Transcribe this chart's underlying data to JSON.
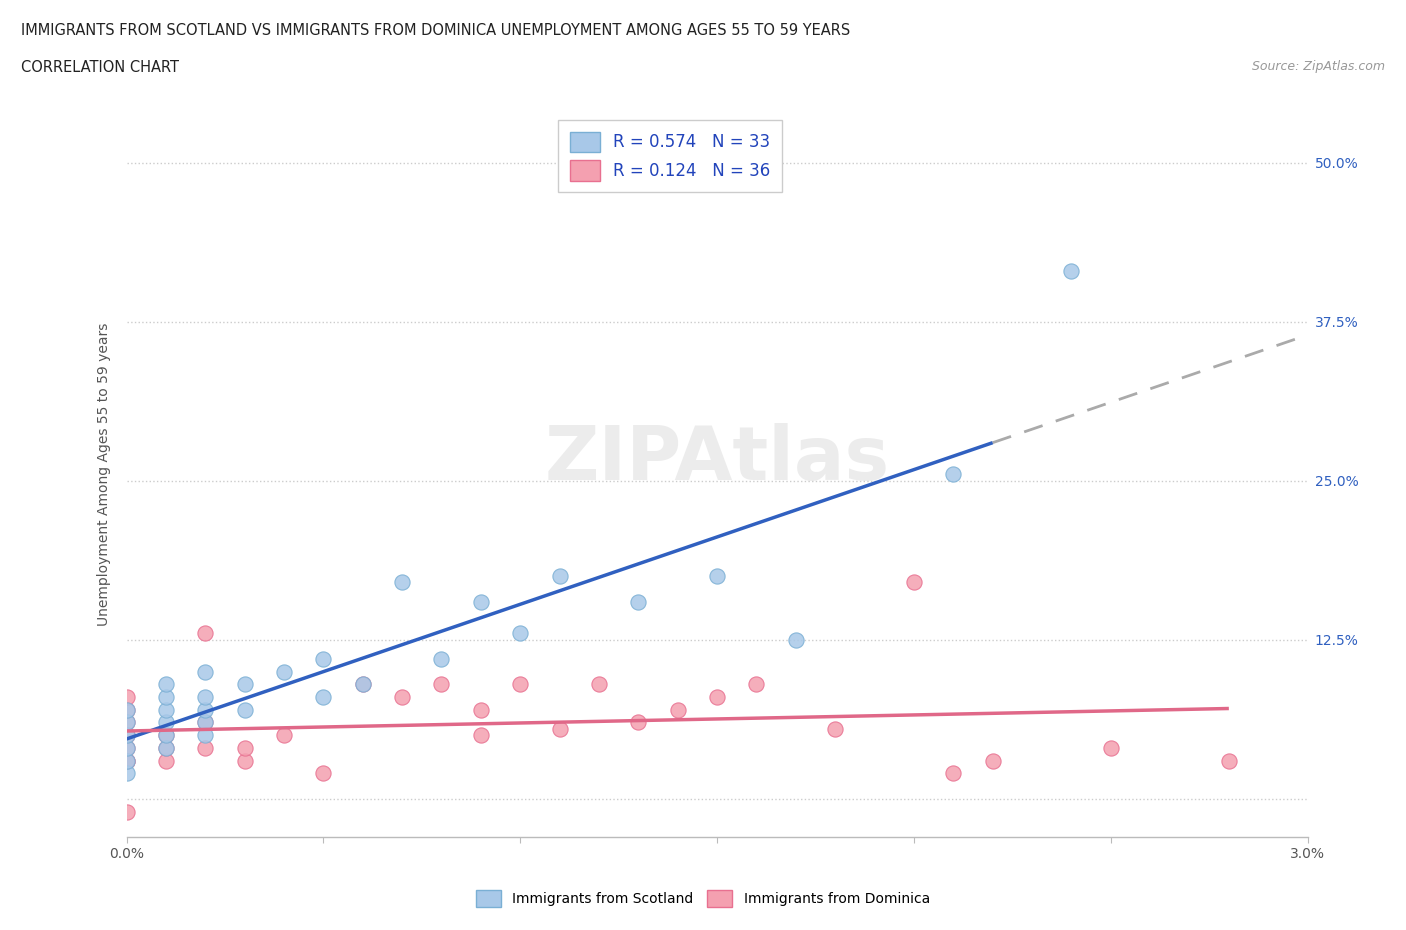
{
  "title_line1": "IMMIGRANTS FROM SCOTLAND VS IMMIGRANTS FROM DOMINICA UNEMPLOYMENT AMONG AGES 55 TO 59 YEARS",
  "title_line2": "CORRELATION CHART",
  "source": "Source: ZipAtlas.com",
  "ylabel": "Unemployment Among Ages 55 to 59 years",
  "xlim": [
    0.0,
    0.03
  ],
  "ylim": [
    -0.03,
    0.54
  ],
  "xticks": [
    0.0,
    0.005,
    0.01,
    0.015,
    0.02,
    0.025,
    0.03
  ],
  "xticklabels": [
    "0.0%",
    "",
    "",
    "",
    "",
    "",
    "3.0%"
  ],
  "ytick_positions": [
    0.0,
    0.125,
    0.25,
    0.375,
    0.5
  ],
  "right_yticklabels": [
    "",
    "12.5%",
    "25.0%",
    "37.5%",
    "50.0%"
  ],
  "scotland_color": "#a8c8e8",
  "dominica_color": "#f4a0b0",
  "scotland_edge": "#7aafd4",
  "dominica_edge": "#e87090",
  "scotland_R": 0.574,
  "scotland_N": 33,
  "dominica_R": 0.124,
  "dominica_N": 36,
  "scotland_x": [
    0.0,
    0.0,
    0.0,
    0.0,
    0.0,
    0.0,
    0.001,
    0.001,
    0.001,
    0.001,
    0.001,
    0.001,
    0.002,
    0.002,
    0.002,
    0.002,
    0.002,
    0.003,
    0.003,
    0.004,
    0.005,
    0.005,
    0.006,
    0.007,
    0.008,
    0.009,
    0.01,
    0.011,
    0.013,
    0.015,
    0.017,
    0.021,
    0.024
  ],
  "scotland_y": [
    0.02,
    0.03,
    0.04,
    0.05,
    0.06,
    0.07,
    0.04,
    0.05,
    0.06,
    0.07,
    0.08,
    0.09,
    0.05,
    0.06,
    0.07,
    0.08,
    0.1,
    0.07,
    0.09,
    0.1,
    0.08,
    0.11,
    0.09,
    0.17,
    0.11,
    0.155,
    0.13,
    0.175,
    0.155,
    0.175,
    0.125,
    0.255,
    0.415
  ],
  "dominica_x": [
    0.0,
    0.0,
    0.0,
    0.0,
    0.0,
    0.0,
    0.0,
    0.0,
    0.001,
    0.001,
    0.001,
    0.002,
    0.002,
    0.002,
    0.003,
    0.003,
    0.004,
    0.005,
    0.006,
    0.007,
    0.008,
    0.009,
    0.009,
    0.01,
    0.011,
    0.012,
    0.013,
    0.014,
    0.015,
    0.016,
    0.018,
    0.02,
    0.021,
    0.022,
    0.025,
    0.028
  ],
  "dominica_y": [
    0.03,
    0.04,
    0.05,
    0.06,
    0.07,
    0.08,
    0.03,
    -0.01,
    0.03,
    0.04,
    0.05,
    0.04,
    0.06,
    0.13,
    0.03,
    0.04,
    0.05,
    0.02,
    0.09,
    0.08,
    0.09,
    0.05,
    0.07,
    0.09,
    0.055,
    0.09,
    0.06,
    0.07,
    0.08,
    0.09,
    0.055,
    0.17,
    0.02,
    0.03,
    0.04,
    0.03
  ],
  "bg_color": "#ffffff",
  "grid_color": "#cccccc",
  "trend_scotland_color": "#3060c0",
  "trend_dominica_color": "#e06888"
}
